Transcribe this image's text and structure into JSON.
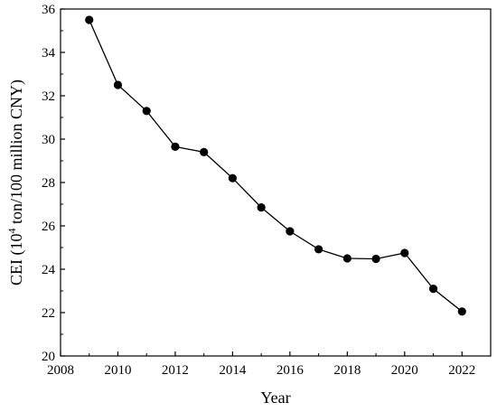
{
  "chart_data": {
    "type": "line",
    "xlabel": "Year",
    "ylabel_parts": {
      "prefix": "CEI (10",
      "sup": "4",
      "suffix": " ton/100 million CNY)"
    },
    "xlim": [
      2008,
      2023
    ],
    "ylim": [
      20,
      36
    ],
    "xticks": [
      2008,
      2010,
      2012,
      2014,
      2016,
      2018,
      2020,
      2022
    ],
    "yticks": [
      20,
      22,
      24,
      26,
      28,
      30,
      32,
      34,
      36
    ],
    "grid": false,
    "series": [
      {
        "x": [
          2009,
          2010,
          2011,
          2012,
          2013,
          2014,
          2015,
          2016,
          2017,
          2018,
          2019,
          2020,
          2021,
          2022
        ],
        "y": [
          35.5,
          32.5,
          31.3,
          29.65,
          29.4,
          28.2,
          26.85,
          25.75,
          24.92,
          24.5,
          24.48,
          24.75,
          23.1,
          22.05
        ],
        "color": "#000000",
        "marker": "circle"
      }
    ]
  }
}
